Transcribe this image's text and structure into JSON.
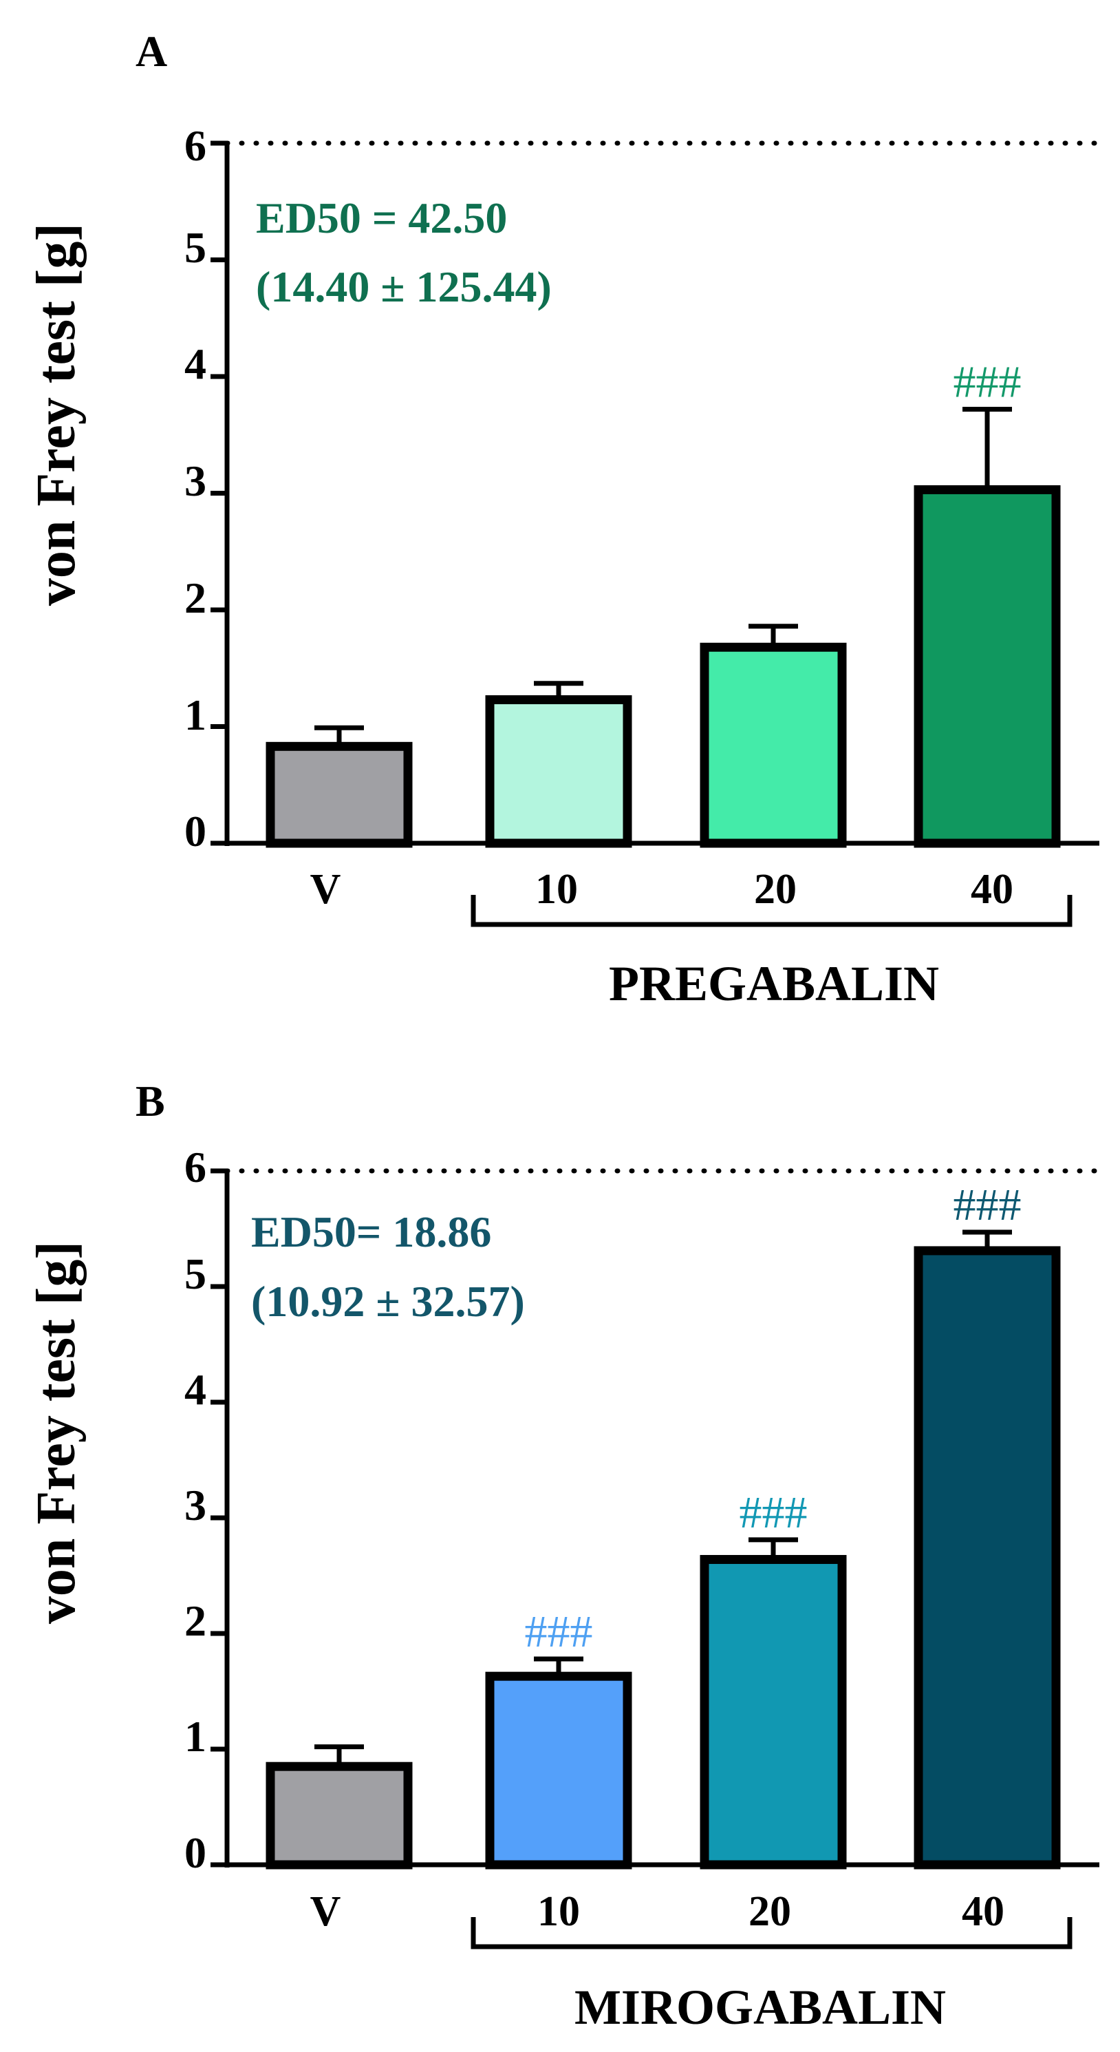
{
  "chart_data": [
    {
      "type": "bar",
      "panel": "A",
      "categories": [
        "V",
        "10",
        "20",
        "40"
      ],
      "values": [
        0.83,
        1.23,
        1.68,
        3.03
      ],
      "errors": [
        0.16,
        0.14,
        0.18,
        0.69
      ],
      "colors": [
        "#a0a0a4",
        "#b3f5de",
        "#44eba9",
        "#10985f"
      ],
      "significance": [
        "",
        "",
        "",
        "###"
      ],
      "significance_color": "#13996a",
      "ylabel": "von Frey test [g]",
      "ylim": [
        0,
        6
      ],
      "yticks": [
        "0",
        "1",
        "2",
        "3",
        "4",
        "5",
        "6"
      ],
      "cutoff": 6,
      "group_label": "PREGABALIN",
      "annotation": [
        "ED50 = 42.50",
        "(14.40 ± 125.44)"
      ],
      "annotation_color": "#0f7050"
    },
    {
      "type": "bar",
      "panel": "B",
      "categories": [
        "V",
        "10",
        "20",
        "40"
      ],
      "values": [
        0.85,
        1.63,
        2.64,
        5.31
      ],
      "errors": [
        0.17,
        0.15,
        0.17,
        0.16
      ],
      "colors": [
        "#a0a0a4",
        "#54a0fa",
        "#1198b2",
        "#044c63"
      ],
      "significance": [
        "",
        "###",
        "###",
        "###"
      ],
      "significance_colors": [
        "",
        "#4ea0f2",
        "#1298b4",
        "#0d5870"
      ],
      "ylabel": "von Frey test [g]",
      "ylim": [
        0,
        6
      ],
      "yticks": [
        "0",
        "1",
        "2",
        "3",
        "4",
        "5",
        "6"
      ],
      "cutoff": 6,
      "group_label": "MIROGABALIN",
      "annotation": [
        "ED50= 18.86",
        "(10.92 ± 32.57)"
      ],
      "annotation_color": "#13566a"
    }
  ]
}
